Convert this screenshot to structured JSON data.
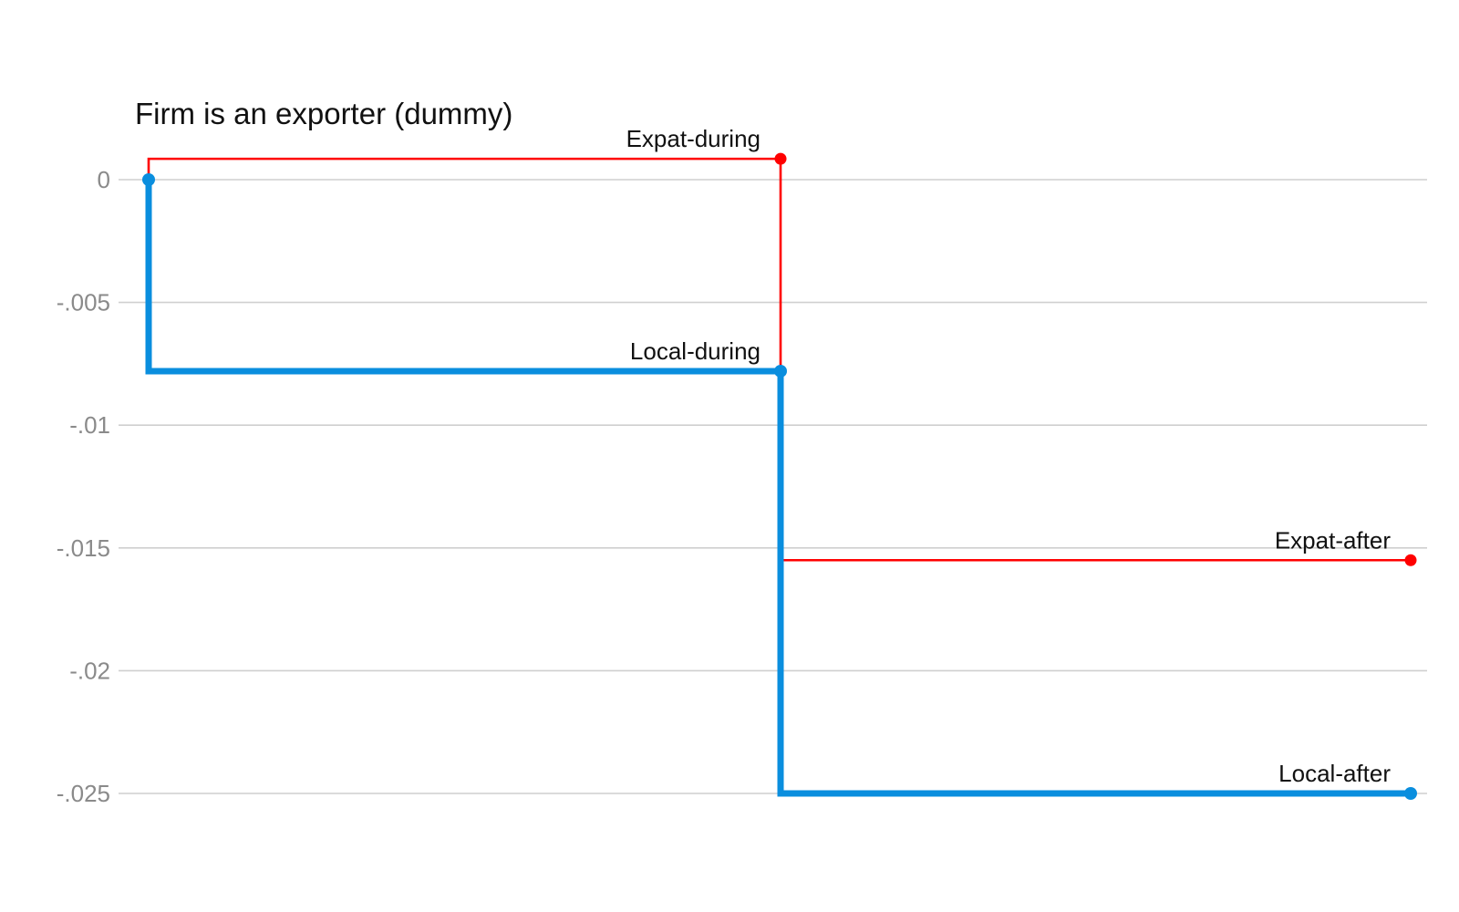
{
  "chart_data": {
    "type": "line",
    "title": "Firm is an exporter (dummy)",
    "xlabel": "",
    "ylabel": "",
    "ylim": [
      -0.0265,
      0.0014
    ],
    "y_ticks": [
      {
        "value": 0,
        "label": "0"
      },
      {
        "value": -0.005,
        "label": "-.005"
      },
      {
        "value": -0.01,
        "label": "-.01"
      },
      {
        "value": -0.015,
        "label": "-.015"
      },
      {
        "value": -0.02,
        "label": "-.02"
      },
      {
        "value": -0.025,
        "label": "-.025"
      }
    ],
    "grid": true,
    "series": [
      {
        "key": "expat",
        "color": "#ff0000",
        "points": [
          {
            "x": 0,
            "y": 0,
            "label": ""
          },
          {
            "x": 1,
            "y": 0.00085,
            "label": "Expat-during"
          },
          {
            "x": 2,
            "y": -0.0155,
            "label": "Expat-after"
          }
        ]
      },
      {
        "key": "local",
        "color": "#0a8ede",
        "points": [
          {
            "x": 0,
            "y": 0,
            "label": ""
          },
          {
            "x": 1,
            "y": -0.0078,
            "label": "Local-during"
          },
          {
            "x": 2,
            "y": -0.025,
            "label": "Local-after"
          }
        ]
      }
    ]
  }
}
